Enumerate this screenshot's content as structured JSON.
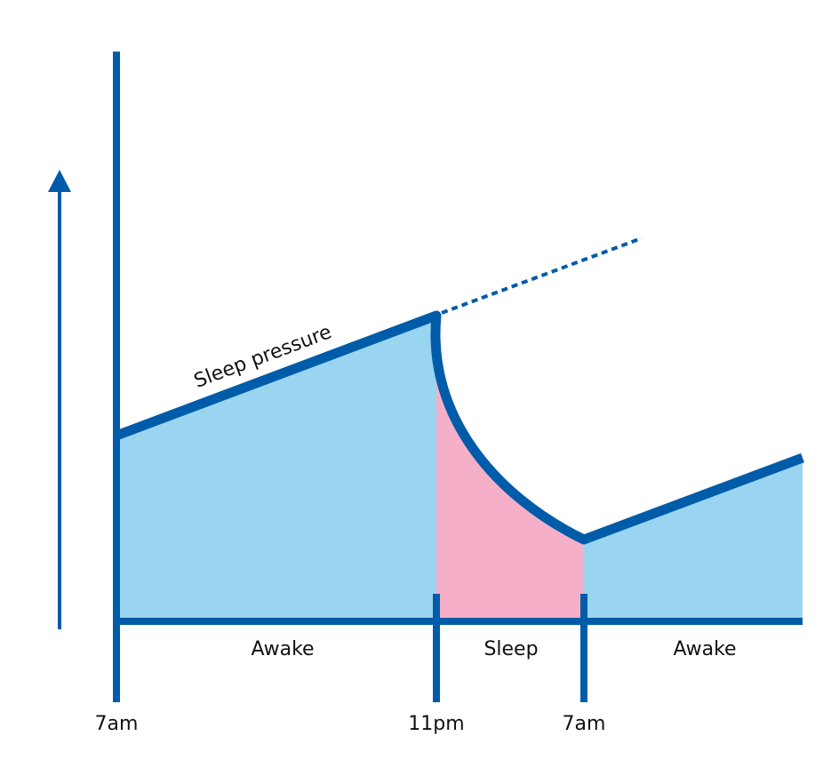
{
  "curve_label": "Sleep pressure",
  "phases": [
    "Awake",
    "Sleep",
    "Awake"
  ],
  "times": [
    "7am",
    "11pm",
    "7am"
  ]
}
